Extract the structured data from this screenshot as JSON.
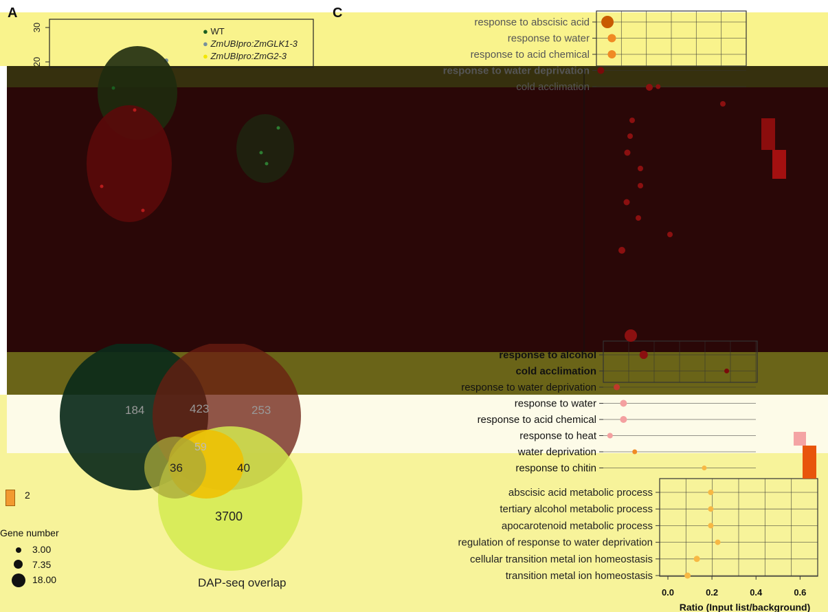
{
  "panels": {
    "a": "A",
    "c": "C"
  },
  "scatter_legend": [
    {
      "label": "WT",
      "color": "#1b5e20",
      "italic": false
    },
    {
      "label": "ZmUBIpro:ZmGLK1-3",
      "color": "#78909c",
      "italic": true
    },
    {
      "label": "ZmUBIpro:ZmG2-3",
      "color": "#f2e600",
      "italic": true
    }
  ],
  "pca_axis": {
    "y_ticks": [
      "30",
      "20"
    ]
  },
  "venn": {
    "title": "DAP-seq overlap",
    "counts": {
      "a_only": "184",
      "ab": "423",
      "b_only": "253",
      "abc": "59",
      "ac": "36",
      "bc": "40",
      "c_only": "3700"
    }
  },
  "size_legend": {
    "title": "Gene number",
    "items": [
      "3.00",
      "7.35",
      "18.00"
    ]
  },
  "color_legend_value": "2",
  "colors": {
    "dot_orange": "#f08a24",
    "dot_light": "#f7b844",
    "dot_dark": "#7a0a0a",
    "dot_red": "#8b1010"
  },
  "chart_data": [
    {
      "type": "scatter",
      "title": "",
      "xlabel": "",
      "ylabel": "",
      "legend": [
        "WT",
        "ZmUBIpro:ZmGLK1-3",
        "ZmUBIpro:ZmG2-3"
      ],
      "y_ticks": [
        30,
        20
      ]
    },
    {
      "type": "scatter",
      "name": "GO enrichment (top)",
      "categories": [
        "response to abscisic acid",
        "response to water",
        "response to acid chemical",
        "response to water deprivation",
        "cold acclimation"
      ],
      "x": [
        0.05,
        0.07,
        0.07,
        0.02,
        0.28
      ],
      "size": [
        18,
        12,
        12,
        10,
        7
      ]
    },
    {
      "type": "scatter",
      "name": "GO enrichment (middle)",
      "categories": [
        "response to alcohol",
        "cold acclimation",
        "response to water deprivation",
        "response to water",
        "response to acid chemical",
        "response to heat",
        "water deprivation",
        "response to chitin"
      ],
      "x": [
        0.18,
        0.55,
        0.06,
        0.09,
        0.09,
        0.03,
        0.14,
        0.45
      ],
      "size": [
        12,
        7,
        9,
        10,
        10,
        8,
        6,
        6
      ]
    },
    {
      "type": "scatter",
      "name": "GO enrichment (bottom)",
      "categories": [
        "abscisic acid metabolic process",
        "tertiary alcohol metabolic process",
        "apocarotenoid metabolic process",
        "regulation of response to water deprivation",
        "cellular transition metal ion homeostasis",
        "transition metal ion homeostasis"
      ],
      "x": [
        0.22,
        0.22,
        0.22,
        0.25,
        0.16,
        0.12
      ],
      "size": [
        8,
        8,
        8,
        8,
        9,
        9
      ],
      "xlabel": "Ratio (Input list/background)",
      "x_ticks": [
        "0.0",
        "0.2",
        "0.4",
        "0.6"
      ],
      "xlim": [
        0,
        0.68
      ]
    }
  ]
}
